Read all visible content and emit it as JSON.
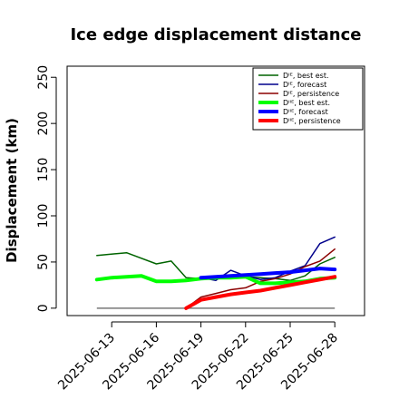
{
  "chart_data": {
    "type": "line",
    "title": "Ice edge displacement distance",
    "xlabel": "",
    "ylabel": "Displacement (km)",
    "ylim": [
      -8,
      262
    ],
    "yticks": [
      0,
      50,
      100,
      150,
      200,
      250
    ],
    "xlim": [
      "2025-06-10",
      "2025-06-30"
    ],
    "xticks": [
      "2025-06-13",
      "2025-06-16",
      "2025-06-19",
      "2025-06-22",
      "2025-06-25",
      "2025-06-28"
    ],
    "highlight_tick": "2025-06-19",
    "highlight_color": "#228B22",
    "grid": false,
    "legend_position": "top-right",
    "series": [
      {
        "name": "Dᴵᴱ, best est.",
        "color": "#006400",
        "width": 1.5,
        "x": [
          "2025-06-12",
          "2025-06-14",
          "2025-06-16",
          "2025-06-17",
          "2025-06-18",
          "2025-06-19",
          "2025-06-20",
          "2025-06-21",
          "2025-06-22",
          "2025-06-23",
          "2025-06-24",
          "2025-06-25",
          "2025-06-26",
          "2025-06-27",
          "2025-06-28"
        ],
        "y": [
          57,
          60,
          48,
          51,
          33,
          32,
          33,
          34,
          34,
          33,
          32,
          30,
          35,
          48,
          55
        ]
      },
      {
        "name": "Dᴵᴱ, forecast",
        "color": "#00008B",
        "width": 1.5,
        "x": [
          "2025-06-19",
          "2025-06-20",
          "2025-06-21",
          "2025-06-22",
          "2025-06-23",
          "2025-06-24",
          "2025-06-25",
          "2025-06-26",
          "2025-06-27",
          "2025-06-28"
        ],
        "y": [
          33,
          30,
          41,
          35,
          31,
          33,
          40,
          46,
          70,
          77
        ]
      },
      {
        "name": "Dᴵᴱ, persistence",
        "color": "#8B0000",
        "width": 1.5,
        "x": [
          "2025-06-18",
          "2025-06-19",
          "2025-06-20",
          "2025-06-21",
          "2025-06-22",
          "2025-06-23",
          "2025-06-24",
          "2025-06-25",
          "2025-06-26",
          "2025-06-27",
          "2025-06-28"
        ],
        "y": [
          0,
          12,
          16,
          20,
          22,
          29,
          32,
          37,
          45,
          51,
          64
        ]
      },
      {
        "name": "Dᴵᴵᴱ, best est.",
        "color": "#00FF00",
        "width": 4,
        "x": [
          "2025-06-12",
          "2025-06-13",
          "2025-06-14",
          "2025-06-15",
          "2025-06-16",
          "2025-06-17",
          "2025-06-18",
          "2025-06-19",
          "2025-06-20",
          "2025-06-21",
          "2025-06-22",
          "2025-06-23",
          "2025-06-24",
          "2025-06-25",
          "2025-06-26",
          "2025-06-27",
          "2025-06-28"
        ],
        "y": [
          31,
          33,
          34,
          35,
          29,
          29,
          30,
          32,
          33,
          33,
          34,
          27,
          27,
          28,
          29,
          32,
          33
        ]
      },
      {
        "name": "Dᴵᴵᴱ, forecast",
        "color": "#0000FF",
        "width": 4,
        "x": [
          "2025-06-19",
          "2025-06-20",
          "2025-06-21",
          "2025-06-22",
          "2025-06-23",
          "2025-06-24",
          "2025-06-25",
          "2025-06-26",
          "2025-06-27",
          "2025-06-28"
        ],
        "y": [
          33,
          34,
          35,
          36,
          37,
          38,
          39,
          41,
          43,
          42
        ]
      },
      {
        "name": "Dᴵᴵᴱ, persistence",
        "color": "#FF0000",
        "width": 4,
        "x": [
          "2025-06-18",
          "2025-06-19",
          "2025-06-20",
          "2025-06-21",
          "2025-06-22",
          "2025-06-23",
          "2025-06-24",
          "2025-06-25",
          "2025-06-26",
          "2025-06-27",
          "2025-06-28"
        ],
        "y": [
          0,
          9,
          12,
          15,
          17,
          19,
          22,
          25,
          28,
          31,
          34
        ]
      }
    ],
    "reference_line": {
      "y": 0,
      "color": "#777777",
      "x": [
        "2025-06-12",
        "2025-06-28"
      ]
    }
  }
}
